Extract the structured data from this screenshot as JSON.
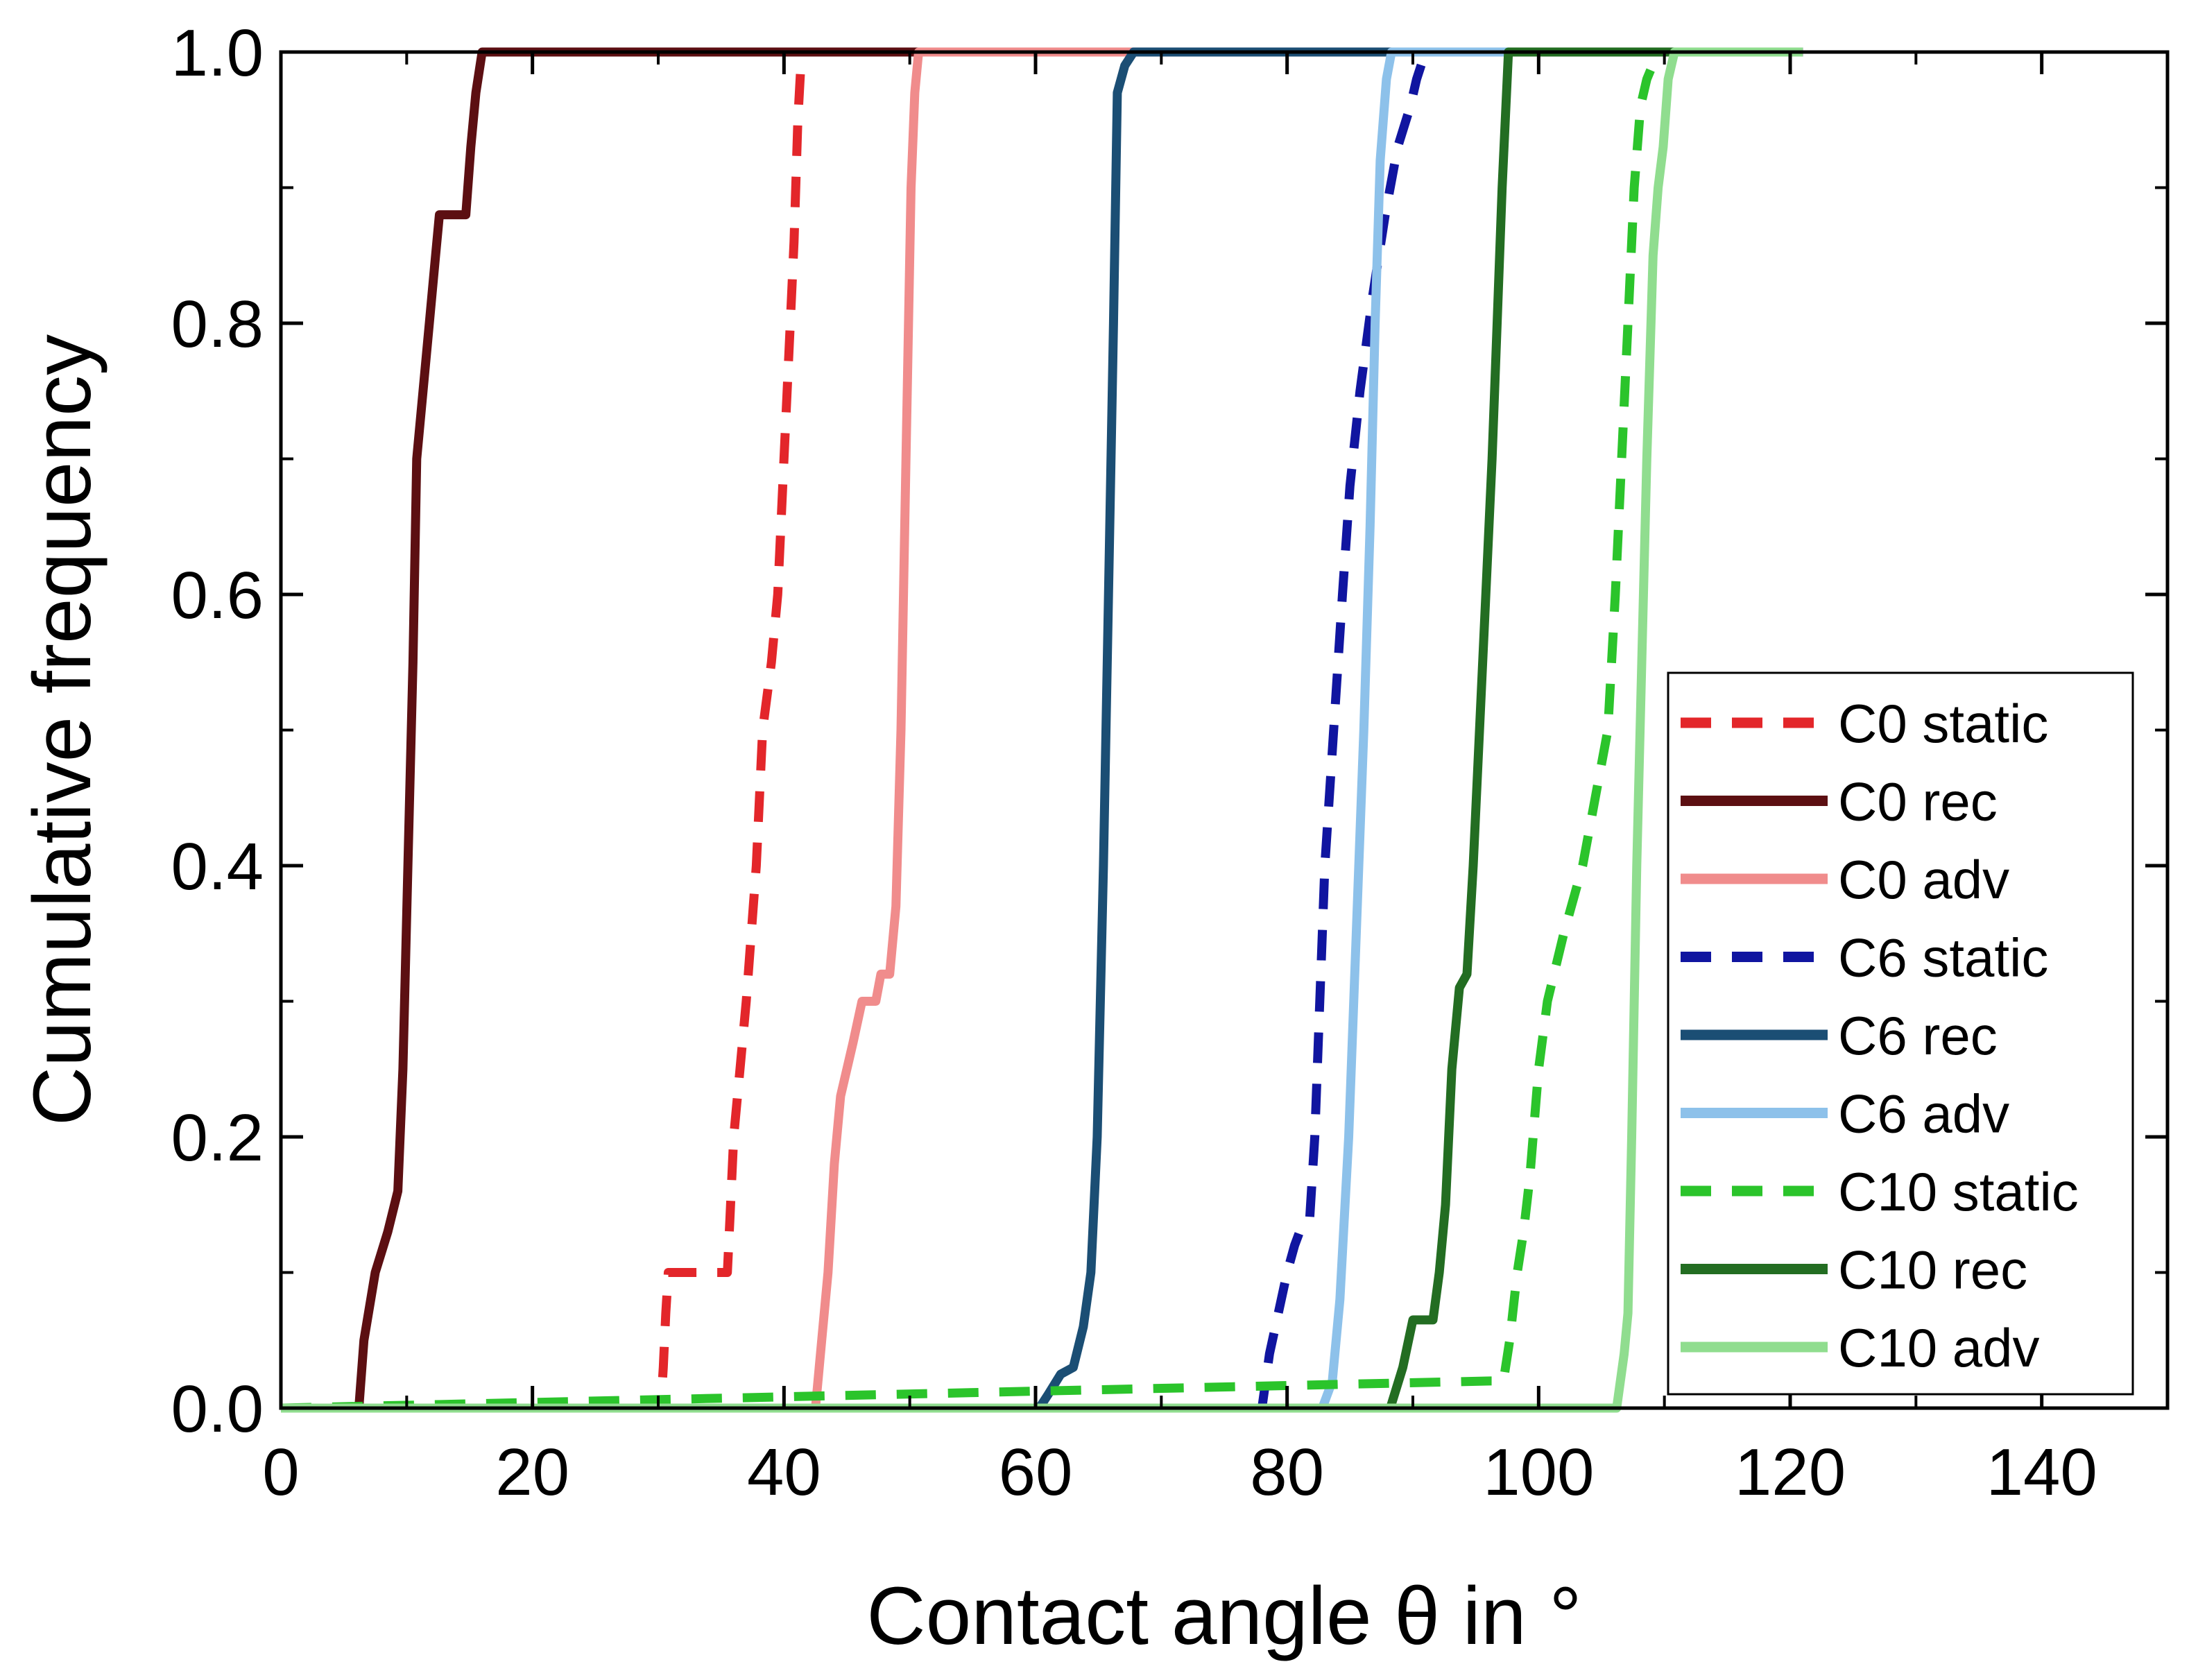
{
  "chart_data": {
    "type": "line",
    "xlabel": "Contact angle θ in °",
    "ylabel": "Cumulative frequency",
    "xlim": [
      0,
      150
    ],
    "ylim": [
      0,
      1.0
    ],
    "x_ticks": [
      "0",
      "20",
      "40",
      "60",
      "80",
      "100",
      "120",
      "140"
    ],
    "y_ticks": [
      "0.0",
      "0.2",
      "0.4",
      "0.6",
      "0.8",
      "1.0"
    ],
    "grid": false,
    "legend_position": "bottom-right",
    "series": [
      {
        "name": "C0 static",
        "color": "#e3262a",
        "dash": "dashed",
        "points": [
          [
            0,
            0
          ],
          [
            30.2,
            0
          ],
          [
            30.4,
            0.03
          ],
          [
            30.6,
            0.07
          ],
          [
            30.8,
            0.1
          ],
          [
            33.5,
            0.1
          ],
          [
            35.5,
            0.1
          ],
          [
            35.7,
            0.14
          ],
          [
            36,
            0.2
          ],
          [
            36.5,
            0.25
          ],
          [
            37,
            0.3
          ],
          [
            37.8,
            0.4
          ],
          [
            38.3,
            0.5
          ],
          [
            39,
            0.55
          ],
          [
            39.5,
            0.6
          ],
          [
            40,
            0.7
          ],
          [
            40.5,
            0.8
          ],
          [
            40.8,
            0.86
          ],
          [
            41.1,
            0.95
          ],
          [
            41.4,
            1.0
          ],
          [
            42,
            1.0
          ],
          [
            121,
            1.0
          ]
        ]
      },
      {
        "name": "C0 rec",
        "color": "#5c0f12",
        "dash": "solid",
        "points": [
          [
            0,
            0
          ],
          [
            6.2,
            0
          ],
          [
            6.6,
            0.05
          ],
          [
            7.5,
            0.1
          ],
          [
            8.5,
            0.13
          ],
          [
            9.3,
            0.16
          ],
          [
            9.7,
            0.25
          ],
          [
            10.1,
            0.4
          ],
          [
            10.5,
            0.55
          ],
          [
            10.8,
            0.7
          ],
          [
            11.3,
            0.75
          ],
          [
            11.8,
            0.8
          ],
          [
            12.3,
            0.85
          ],
          [
            12.6,
            0.88
          ],
          [
            14.7,
            0.88
          ],
          [
            15.1,
            0.93
          ],
          [
            15.5,
            0.97
          ],
          [
            16,
            1.0
          ],
          [
            17,
            1.0
          ],
          [
            121,
            1.0
          ]
        ]
      },
      {
        "name": "C0 adv",
        "color": "#f08c8c",
        "dash": "solid",
        "points": [
          [
            0,
            0
          ],
          [
            42.5,
            0
          ],
          [
            43,
            0.05
          ],
          [
            43.5,
            0.1
          ],
          [
            44,
            0.18
          ],
          [
            44.5,
            0.23
          ],
          [
            45.5,
            0.27
          ],
          [
            46.2,
            0.3
          ],
          [
            47.3,
            0.3
          ],
          [
            47.7,
            0.32
          ],
          [
            48.4,
            0.32
          ],
          [
            48.9,
            0.37
          ],
          [
            49.3,
            0.5
          ],
          [
            49.7,
            0.7
          ],
          [
            50.1,
            0.9
          ],
          [
            50.4,
            0.97
          ],
          [
            50.7,
            1.0
          ],
          [
            51.5,
            1.0
          ],
          [
            121,
            1.0
          ]
        ]
      },
      {
        "name": "C6 static",
        "color": "#1015a0",
        "dash": "dashed",
        "points": [
          [
            0,
            0
          ],
          [
            78,
            0
          ],
          [
            78.6,
            0.04
          ],
          [
            79.3,
            0.07
          ],
          [
            80,
            0.1
          ],
          [
            80.6,
            0.12
          ],
          [
            81.2,
            0.135
          ],
          [
            81.8,
            0.14
          ],
          [
            82.2,
            0.2
          ],
          [
            82.6,
            0.3
          ],
          [
            83,
            0.4
          ],
          [
            83.7,
            0.5
          ],
          [
            84.4,
            0.6
          ],
          [
            85,
            0.68
          ],
          [
            85.8,
            0.75
          ],
          [
            86.8,
            0.82
          ],
          [
            87.8,
            0.88
          ],
          [
            88.8,
            0.93
          ],
          [
            89.8,
            0.96
          ],
          [
            90.3,
            0.98
          ],
          [
            91,
            1.0
          ],
          [
            121,
            1.0
          ]
        ]
      },
      {
        "name": "C6 rec",
        "color": "#1b4e74",
        "dash": "solid",
        "points": [
          [
            0,
            0
          ],
          [
            60.3,
            0
          ],
          [
            61,
            0.01
          ],
          [
            62,
            0.025
          ],
          [
            63,
            0.03
          ],
          [
            63.8,
            0.06
          ],
          [
            64.4,
            0.1
          ],
          [
            64.9,
            0.2
          ],
          [
            65.4,
            0.4
          ],
          [
            65.8,
            0.6
          ],
          [
            66.2,
            0.8
          ],
          [
            66.5,
            0.97
          ],
          [
            67.1,
            0.99
          ],
          [
            67.8,
            1.0
          ],
          [
            68.5,
            1.0
          ],
          [
            121,
            1.0
          ]
        ]
      },
      {
        "name": "C6 adv",
        "color": "#8dc1ea",
        "dash": "solid",
        "points": [
          [
            0,
            0
          ],
          [
            82.8,
            0
          ],
          [
            83.6,
            0.02
          ],
          [
            84.2,
            0.08
          ],
          [
            84.9,
            0.2
          ],
          [
            85.5,
            0.35
          ],
          [
            86.1,
            0.5
          ],
          [
            86.6,
            0.65
          ],
          [
            87,
            0.8
          ],
          [
            87.4,
            0.92
          ],
          [
            87.9,
            0.98
          ],
          [
            88.3,
            1.0
          ],
          [
            89,
            1.0
          ],
          [
            121,
            1.0
          ]
        ]
      },
      {
        "name": "C10 static",
        "color": "#2bc42b",
        "dash": "dashed",
        "points": [
          [
            0,
            0
          ],
          [
            96.2,
            0.02
          ],
          [
            97.2,
            0.02
          ],
          [
            97.7,
            0.05
          ],
          [
            98.3,
            0.1
          ],
          [
            98.8,
            0.13
          ],
          [
            99.3,
            0.17
          ],
          [
            100,
            0.25
          ],
          [
            100.7,
            0.3
          ],
          [
            102,
            0.35
          ],
          [
            103.5,
            0.4
          ],
          [
            104.5,
            0.45
          ],
          [
            105.5,
            0.5
          ],
          [
            106.1,
            0.6
          ],
          [
            106.6,
            0.7
          ],
          [
            107.1,
            0.8
          ],
          [
            107.6,
            0.9
          ],
          [
            108.1,
            0.96
          ],
          [
            108.6,
            0.98
          ],
          [
            109.5,
            1.0
          ],
          [
            121,
            1.0
          ]
        ]
      },
      {
        "name": "C10 rec",
        "color": "#236d22",
        "dash": "solid",
        "points": [
          [
            0,
            0
          ],
          [
            88.2,
            0
          ],
          [
            89.2,
            0.03
          ],
          [
            90,
            0.065
          ],
          [
            91.6,
            0.065
          ],
          [
            92.1,
            0.1
          ],
          [
            92.6,
            0.15
          ],
          [
            93.1,
            0.25
          ],
          [
            93.7,
            0.31
          ],
          [
            94.3,
            0.32
          ],
          [
            94.8,
            0.4
          ],
          [
            95.3,
            0.5
          ],
          [
            95.8,
            0.6
          ],
          [
            96.3,
            0.7
          ],
          [
            96.7,
            0.8
          ],
          [
            97.1,
            0.9
          ],
          [
            97.6,
            1.0
          ],
          [
            98.5,
            1.0
          ],
          [
            121,
            1.0
          ]
        ]
      },
      {
        "name": "C10 adv",
        "color": "#90dd8f",
        "dash": "solid",
        "points": [
          [
            0,
            0
          ],
          [
            106.2,
            0
          ],
          [
            106.8,
            0.04
          ],
          [
            107.1,
            0.07
          ],
          [
            107.4,
            0.2
          ],
          [
            107.8,
            0.4
          ],
          [
            108.2,
            0.55
          ],
          [
            108.6,
            0.7
          ],
          [
            109.1,
            0.85
          ],
          [
            109.5,
            0.9
          ],
          [
            109.9,
            0.93
          ],
          [
            110.3,
            0.98
          ],
          [
            110.8,
            1.0
          ],
          [
            111.5,
            1.0
          ],
          [
            121,
            1.0
          ]
        ]
      }
    ]
  }
}
